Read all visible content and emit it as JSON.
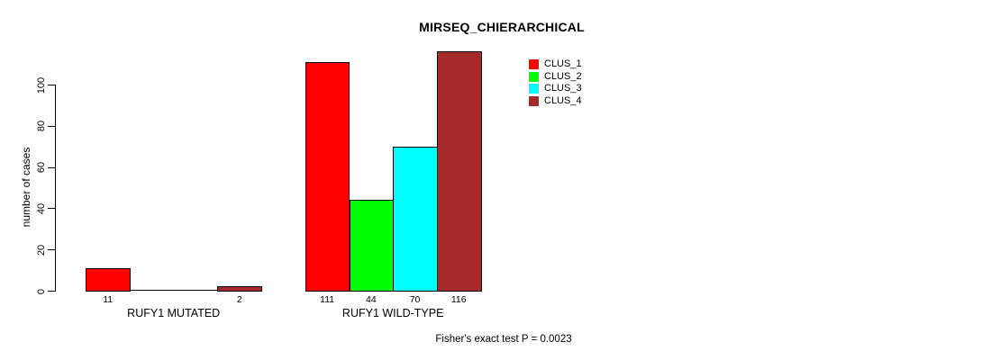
{
  "chart_data": {
    "type": "bar",
    "title": "MIRSEQ_CHIERARCHICAL",
    "ylabel": "number of cases",
    "xlabel": "",
    "ylim": [
      0,
      100
    ],
    "yticks": [
      0,
      20,
      40,
      60,
      80,
      100
    ],
    "grid": false,
    "legend_position": "top-right-inside",
    "categories": [
      "RUFY1 MUTATED",
      "RUFY1 WILD-TYPE"
    ],
    "series": [
      {
        "name": "CLUS_1",
        "color": "#ff0000",
        "values": [
          11,
          111
        ]
      },
      {
        "name": "CLUS_2",
        "color": "#00ff00",
        "values": [
          0,
          44
        ]
      },
      {
        "name": "CLUS_3",
        "color": "#00ffff",
        "values": [
          0,
          70
        ]
      },
      {
        "name": "CLUS_4",
        "color": "#a52a2a",
        "values": [
          2,
          116
        ]
      }
    ],
    "bar_value_labels": [
      [
        "11",
        "",
        "",
        "2"
      ],
      [
        "111",
        "44",
        "70",
        "116"
      ]
    ],
    "annotation": "Fisher's exact test P = 0.0023"
  },
  "colors": {
    "background": "#ffffff",
    "axis": "#000000",
    "text": "#000000",
    "bar_border": "#000000"
  }
}
